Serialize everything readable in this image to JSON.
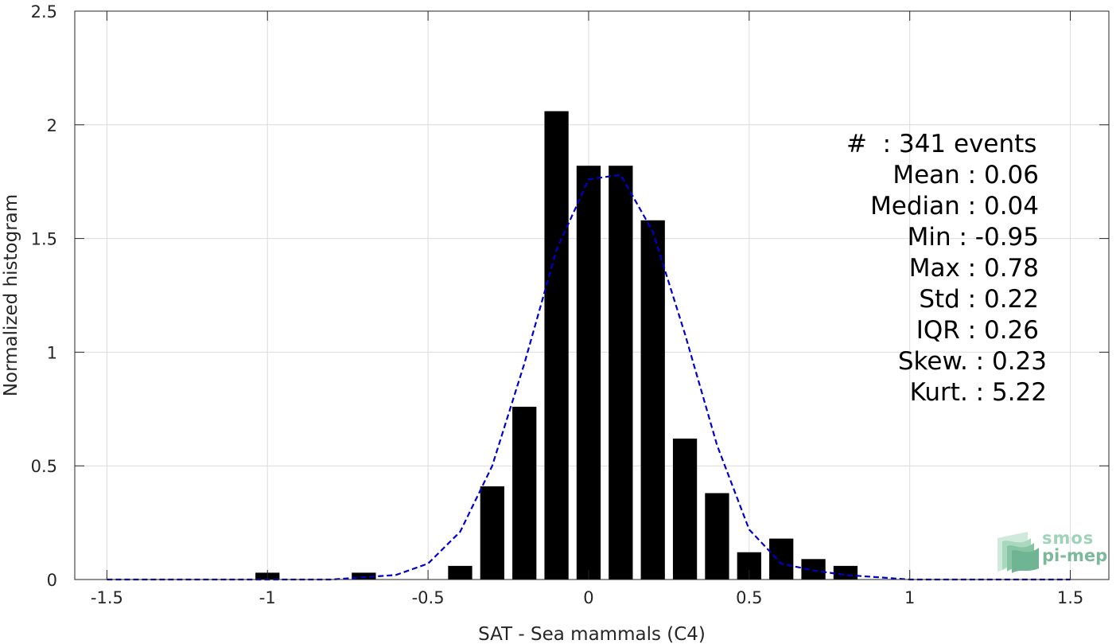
{
  "chart_data": {
    "type": "bar",
    "xlabel": "SAT - Sea mammals (C4)",
    "ylabel": "Normalized histogram",
    "xlim": [
      -1.6,
      1.62
    ],
    "ylim": [
      0,
      2.5
    ],
    "xticks": [
      "-1.5",
      "-1",
      "-0.5",
      "0",
      "0.5",
      "1",
      "1.5"
    ],
    "xtick_values": [
      -1.5,
      -1,
      -0.5,
      0,
      0.5,
      1,
      1.5
    ],
    "yticks": [
      "0",
      "0.5",
      "1",
      "1.5",
      "2",
      "2.5"
    ],
    "ytick_values": [
      0,
      0.5,
      1,
      1.5,
      2,
      2.5
    ],
    "grid": true,
    "bar_color": "#000000",
    "bar_width": 0.075,
    "bars": [
      {
        "x": -1.0,
        "y": 0.03
      },
      {
        "x": -0.7,
        "y": 0.03
      },
      {
        "x": -0.4,
        "y": 0.06
      },
      {
        "x": -0.3,
        "y": 0.41
      },
      {
        "x": -0.2,
        "y": 0.76
      },
      {
        "x": -0.1,
        "y": 2.06
      },
      {
        "x": 0.0,
        "y": 1.82
      },
      {
        "x": 0.1,
        "y": 1.82
      },
      {
        "x": 0.2,
        "y": 1.58
      },
      {
        "x": 0.3,
        "y": 0.62
      },
      {
        "x": 0.4,
        "y": 0.38
      },
      {
        "x": 0.5,
        "y": 0.12
      },
      {
        "x": 0.6,
        "y": 0.18
      },
      {
        "x": 0.7,
        "y": 0.09
      },
      {
        "x": 0.8,
        "y": 0.06
      }
    ],
    "fit_curve": {
      "style": "dashed",
      "color": "#0000cc",
      "x": [
        -1.5,
        -1.4,
        -1.3,
        -1.2,
        -1.1,
        -1.0,
        -0.9,
        -0.8,
        -0.7,
        -0.6,
        -0.5,
        -0.4,
        -0.3,
        -0.2,
        -0.1,
        0.0,
        0.1,
        0.2,
        0.3,
        0.4,
        0.5,
        0.6,
        0.7,
        0.8,
        0.9,
        1.0,
        1.1,
        1.2,
        1.3,
        1.4,
        1.5
      ],
      "y": [
        0,
        0,
        0,
        0,
        0,
        0,
        0,
        0,
        0.01,
        0.02,
        0.07,
        0.21,
        0.5,
        0.95,
        1.45,
        1.76,
        1.78,
        1.53,
        1.08,
        0.59,
        0.22,
        0.07,
        0.04,
        0.02,
        0.01,
        0,
        0,
        0,
        0,
        0,
        0
      ]
    }
  },
  "stats": {
    "count": "#  : 341 events",
    "mean": "Mean : 0.06",
    "median": "Median : 0.04",
    "min": "Min : -0.95",
    "max": "Max : 0.78",
    "std": "Std : 0.22",
    "iqr": "IQR : 0.26",
    "skew": "Skew. : 0.23",
    "kurt": "Kurt. : 5.22"
  },
  "logo": {
    "line1": "smos",
    "line2": "pi-mep",
    "color": "#7cb89a"
  }
}
